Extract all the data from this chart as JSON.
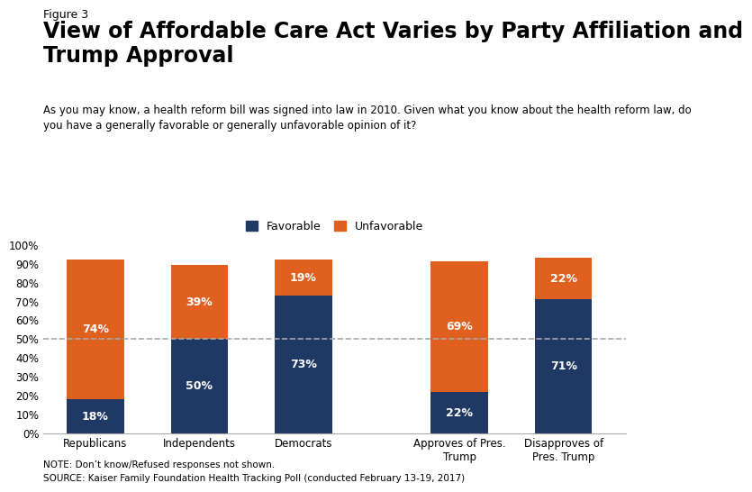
{
  "figure_label": "Figure 3",
  "title": "View of Affordable Care Act Varies by Party Affiliation and\nTrump Approval",
  "subtitle": "As you may know, a health reform bill was signed into law in 2010. Given what you know about the health reform law, do\nyou have a generally favorable or generally unfavorable opinion of it?",
  "note": "NOTE: Don’t know/Refused responses not shown.",
  "source": "SOURCE: Kaiser Family Foundation Health Tracking Poll (conducted February 13-19, 2017)",
  "categories": [
    "Republicans",
    "Independents",
    "Democrats",
    "Approves of Pres.\nTrump",
    "Disapproves of\nPres. Trump"
  ],
  "favorable": [
    18,
    50,
    73,
    22,
    71
  ],
  "unfavorable": [
    74,
    39,
    19,
    69,
    22
  ],
  "favorable_color": "#1f3864",
  "unfavorable_color": "#e06020",
  "bar_width": 0.55,
  "ylim": [
    0,
    100
  ],
  "yticks": [
    0,
    10,
    20,
    30,
    40,
    50,
    60,
    70,
    80,
    90,
    100
  ],
  "ytick_labels": [
    "0%",
    "10%",
    "20%",
    "30%",
    "40%",
    "50%",
    "60%",
    "70%",
    "80%",
    "90%",
    "100%"
  ],
  "legend_labels": [
    "Favorable",
    "Unfavorable"
  ],
  "dashed_line_y": 50,
  "background_color": "#ffffff",
  "title_fontsize": 17,
  "figure_label_fontsize": 9,
  "subtitle_fontsize": 8.5,
  "note_fontsize": 7.5,
  "bar_label_fontsize": 9,
  "axis_label_fontsize": 8.5
}
